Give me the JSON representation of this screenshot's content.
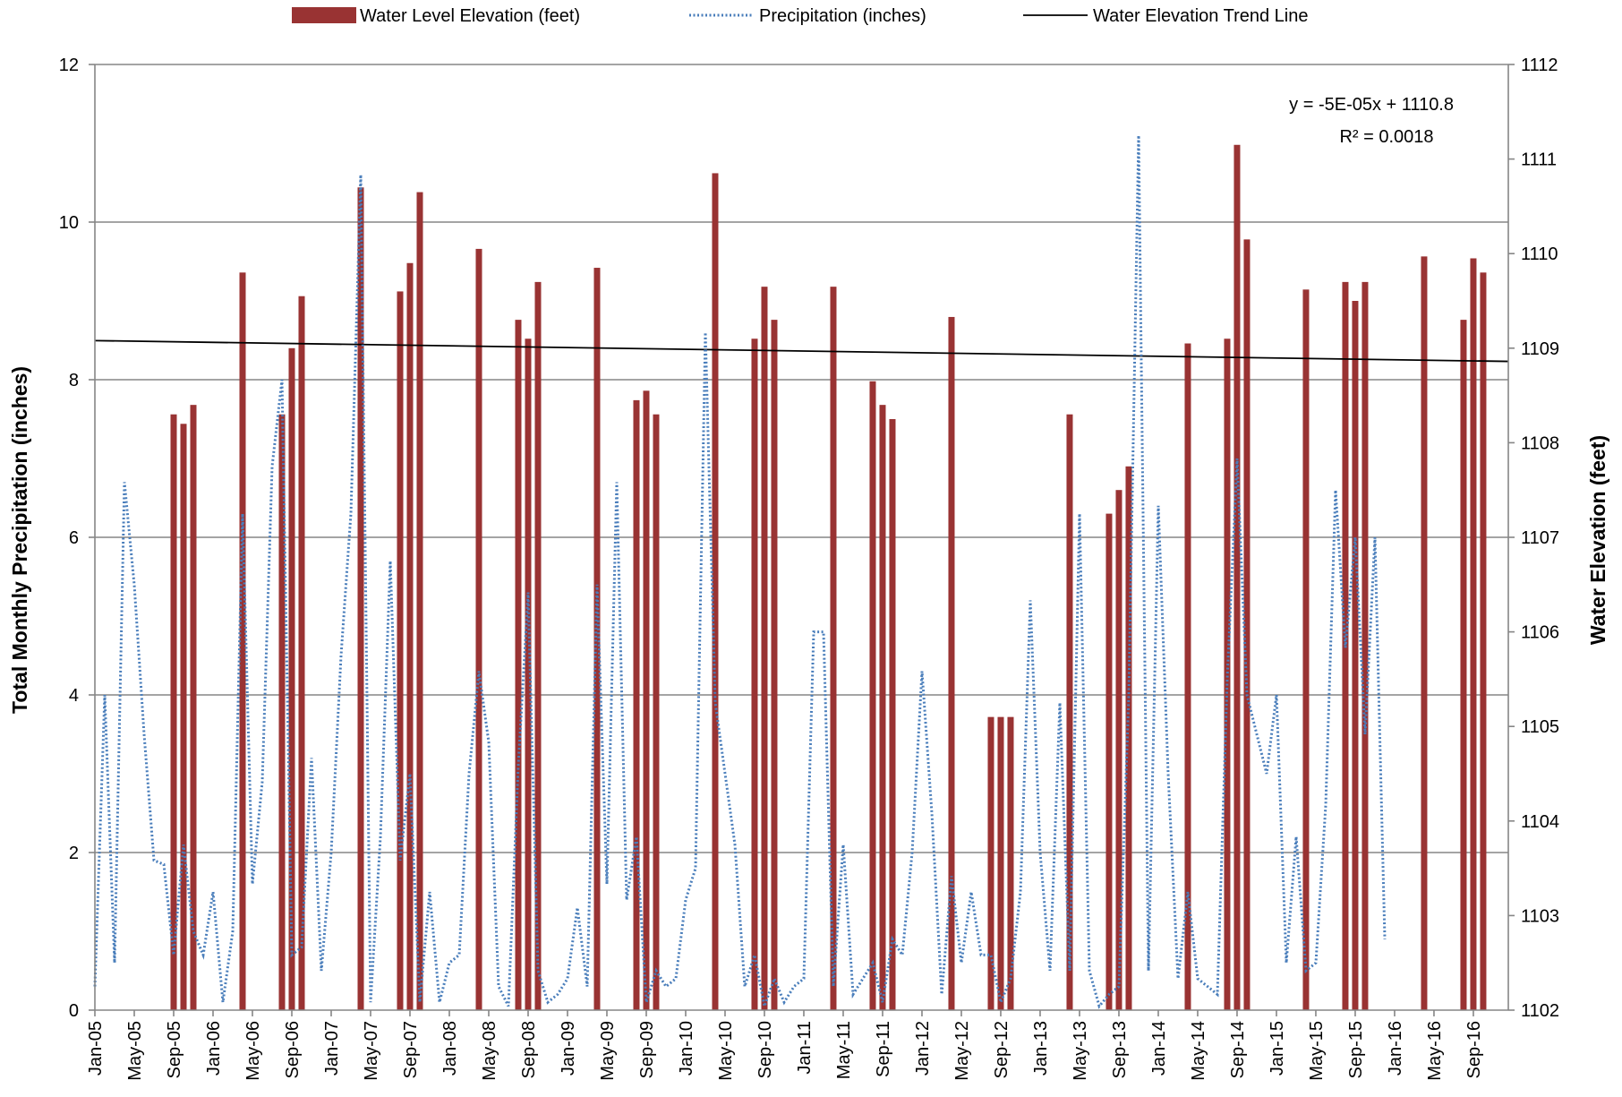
{
  "chart_data": {
    "type": "bar",
    "legend": {
      "placement": "top",
      "entries": [
        "Water Level Elevation (feet)",
        "Precipitation (inches)",
        "Water Elevation Trend Line"
      ]
    },
    "x_tick_labels": [
      "Jan-05",
      "May-05",
      "Sep-05",
      "Jan-06",
      "May-06",
      "Sep-06",
      "Jan-07",
      "May-07",
      "Sep-07",
      "Jan-08",
      "May-08",
      "Sep-08",
      "Jan-09",
      "May-09",
      "Sep-09",
      "Jan-10",
      "May-10",
      "Sep-10",
      "Jan-11",
      "May-11",
      "Sep-11",
      "Jan-12",
      "May-12",
      "Sep-12",
      "Jan-13",
      "May-13",
      "Sep-13",
      "Jan-14",
      "May-14",
      "Sep-14",
      "Jan-15",
      "May-15",
      "Sep-15",
      "Jan-16",
      "May-16",
      "Sep-16"
    ],
    "x_range": [
      "2005-01",
      "2016-12"
    ],
    "y_left": {
      "label": "Total Monthly Precipitation (inches)",
      "range": [
        0,
        12
      ],
      "ticks": [
        "0",
        "2",
        "4",
        "6",
        "8",
        "10",
        "12"
      ]
    },
    "y_right": {
      "label": "Water Elevation (feet)",
      "range": [
        1102,
        1112
      ],
      "ticks": [
        "1102",
        "1103",
        "1104",
        "1105",
        "1106",
        "1107",
        "1108",
        "1109",
        "1110",
        "1111",
        "1112"
      ]
    },
    "grid": "horizontal",
    "series": [
      {
        "name": "Water Level Elevation (feet)",
        "type": "bar",
        "axis": "right",
        "color": "#993333",
        "points": [
          [
            "2005-09",
            1108.3
          ],
          [
            "2005-10",
            1108.2
          ],
          [
            "2005-11",
            1108.4
          ],
          [
            "2006-04",
            1109.8
          ],
          [
            "2006-08",
            1108.3
          ],
          [
            "2006-09",
            1109.0
          ],
          [
            "2006-10",
            1109.55
          ],
          [
            "2007-04",
            1110.7
          ],
          [
            "2007-08",
            1109.6
          ],
          [
            "2007-09",
            1109.9
          ],
          [
            "2007-10",
            1110.65
          ],
          [
            "2008-04",
            1110.05
          ],
          [
            "2008-08",
            1109.3
          ],
          [
            "2008-09",
            1109.1
          ],
          [
            "2008-10",
            1109.7
          ],
          [
            "2009-04",
            1109.85
          ],
          [
            "2009-08",
            1108.45
          ],
          [
            "2009-09",
            1108.55
          ],
          [
            "2009-10",
            1108.3
          ],
          [
            "2010-04",
            1110.85
          ],
          [
            "2010-08",
            1109.1
          ],
          [
            "2010-09",
            1109.65
          ],
          [
            "2010-10",
            1109.3
          ],
          [
            "2011-04",
            1109.65
          ],
          [
            "2011-08",
            1108.65
          ],
          [
            "2011-09",
            1108.4
          ],
          [
            "2011-10",
            1108.25
          ],
          [
            "2012-04",
            1109.33
          ],
          [
            "2012-08",
            1105.1
          ],
          [
            "2012-09",
            1105.1
          ],
          [
            "2012-10",
            1105.1
          ],
          [
            "2013-04",
            1108.3
          ],
          [
            "2013-08",
            1107.25
          ],
          [
            "2013-09",
            1107.5
          ],
          [
            "2013-10",
            1107.75
          ],
          [
            "2014-04",
            1109.05
          ],
          [
            "2014-08",
            1109.1
          ],
          [
            "2014-09",
            1111.15
          ],
          [
            "2014-10",
            1110.15
          ],
          [
            "2015-04",
            1109.62
          ],
          [
            "2015-08",
            1109.7
          ],
          [
            "2015-09",
            1109.5
          ],
          [
            "2015-10",
            1109.7
          ],
          [
            "2016-04",
            1109.97
          ],
          [
            "2016-08",
            1109.3
          ],
          [
            "2016-09",
            1109.95
          ],
          [
            "2016-10",
            1109.8
          ]
        ]
      },
      {
        "name": "Precipitation (inches)",
        "type": "line",
        "style": "dotted",
        "axis": "left",
        "color": "#4a7ebb",
        "points": [
          [
            "2005-01",
            0.3
          ],
          [
            "2005-02",
            4.0
          ],
          [
            "2005-03",
            0.6
          ],
          [
            "2005-04",
            6.7
          ],
          [
            "2005-05",
            5.4
          ],
          [
            "2005-06",
            3.5
          ],
          [
            "2005-07",
            1.9
          ],
          [
            "2005-08",
            1.85
          ],
          [
            "2005-09",
            0.7
          ],
          [
            "2005-10",
            2.1
          ],
          [
            "2005-11",
            1.0
          ],
          [
            "2005-12",
            0.7
          ],
          [
            "2006-01",
            1.5
          ],
          [
            "2006-02",
            0.1
          ],
          [
            "2006-03",
            1.0
          ],
          [
            "2006-04",
            6.3
          ],
          [
            "2006-05",
            1.6
          ],
          [
            "2006-06",
            2.9
          ],
          [
            "2006-07",
            6.9
          ],
          [
            "2006-08",
            8.0
          ],
          [
            "2006-09",
            0.7
          ],
          [
            "2006-10",
            0.8
          ],
          [
            "2006-11",
            3.2
          ],
          [
            "2006-12",
            0.5
          ],
          [
            "2007-01",
            2.0
          ],
          [
            "2007-02",
            4.5
          ],
          [
            "2007-03",
            6.3
          ],
          [
            "2007-04",
            10.6
          ],
          [
            "2007-05",
            0.1
          ],
          [
            "2007-06",
            2.2
          ],
          [
            "2007-07",
            5.7
          ],
          [
            "2007-08",
            1.9
          ],
          [
            "2007-09",
            3.0
          ],
          [
            "2007-10",
            0.1
          ],
          [
            "2007-11",
            1.5
          ],
          [
            "2007-12",
            0.1
          ],
          [
            "2008-01",
            0.6
          ],
          [
            "2008-02",
            0.7
          ],
          [
            "2008-03",
            3.0
          ],
          [
            "2008-04",
            4.3
          ],
          [
            "2008-05",
            3.4
          ],
          [
            "2008-06",
            0.3
          ],
          [
            "2008-07",
            0.05
          ],
          [
            "2008-08",
            3.1
          ],
          [
            "2008-09",
            5.3
          ],
          [
            "2008-10",
            0.5
          ],
          [
            "2008-11",
            0.1
          ],
          [
            "2008-12",
            0.2
          ],
          [
            "2009-01",
            0.4
          ],
          [
            "2009-02",
            1.3
          ],
          [
            "2009-03",
            0.3
          ],
          [
            "2009-04",
            5.4
          ],
          [
            "2009-05",
            1.6
          ],
          [
            "2009-06",
            6.7
          ],
          [
            "2009-07",
            1.4
          ],
          [
            "2009-08",
            2.2
          ],
          [
            "2009-09",
            0.1
          ],
          [
            "2009-10",
            0.5
          ],
          [
            "2009-11",
            0.3
          ],
          [
            "2009-12",
            0.4
          ],
          [
            "2010-01",
            1.4
          ],
          [
            "2010-02",
            1.8
          ],
          [
            "2010-03",
            8.6
          ],
          [
            "2010-04",
            3.9
          ],
          [
            "2010-05",
            3.0
          ],
          [
            "2010-06",
            2.1
          ],
          [
            "2010-07",
            0.3
          ],
          [
            "2010-08",
            0.7
          ],
          [
            "2010-09",
            0.05
          ],
          [
            "2010-10",
            0.4
          ],
          [
            "2010-11",
            0.1
          ],
          [
            "2010-12",
            0.3
          ],
          [
            "2011-01",
            0.4
          ],
          [
            "2011-02",
            4.8
          ],
          [
            "2011-03",
            4.8
          ],
          [
            "2011-04",
            0.3
          ],
          [
            "2011-05",
            2.1
          ],
          [
            "2011-06",
            0.2
          ],
          [
            "2011-07",
            0.4
          ],
          [
            "2011-08",
            0.6
          ],
          [
            "2011-09",
            0.1
          ],
          [
            "2011-10",
            0.9
          ],
          [
            "2011-11",
            0.7
          ],
          [
            "2011-12",
            2.0
          ],
          [
            "2012-01",
            4.3
          ],
          [
            "2012-02",
            2.5
          ],
          [
            "2012-03",
            0.2
          ],
          [
            "2012-04",
            1.7
          ],
          [
            "2012-05",
            0.6
          ],
          [
            "2012-06",
            1.5
          ],
          [
            "2012-07",
            0.7
          ],
          [
            "2012-08",
            0.7
          ],
          [
            "2012-09",
            0.1
          ],
          [
            "2012-10",
            0.4
          ],
          [
            "2012-11",
            1.5
          ],
          [
            "2012-12",
            5.2
          ],
          [
            "2013-01",
            2.0
          ],
          [
            "2013-02",
            0.5
          ],
          [
            "2013-03",
            3.9
          ],
          [
            "2013-04",
            0.5
          ],
          [
            "2013-05",
            6.3
          ],
          [
            "2013-06",
            0.5
          ],
          [
            "2013-07",
            0.05
          ],
          [
            "2013-08",
            0.2
          ],
          [
            "2013-09",
            0.3
          ],
          [
            "2013-10",
            4.0
          ],
          [
            "2013-11",
            11.1
          ],
          [
            "2013-12",
            0.5
          ],
          [
            "2014-01",
            6.4
          ],
          [
            "2014-02",
            3.0
          ],
          [
            "2014-03",
            0.4
          ],
          [
            "2014-04",
            1.5
          ],
          [
            "2014-05",
            0.4
          ],
          [
            "2014-06",
            0.3
          ],
          [
            "2014-07",
            0.2
          ],
          [
            "2014-08",
            4.2
          ],
          [
            "2014-09",
            7.0
          ],
          [
            "2014-10",
            4.0
          ],
          [
            "2014-11",
            3.5
          ],
          [
            "2014-12",
            3.0
          ],
          [
            "2015-01",
            4.0
          ],
          [
            "2015-02",
            0.6
          ],
          [
            "2015-03",
            2.2
          ],
          [
            "2015-04",
            0.5
          ],
          [
            "2015-05",
            0.6
          ],
          [
            "2015-06",
            2.6
          ],
          [
            "2015-07",
            6.6
          ],
          [
            "2015-08",
            4.6
          ],
          [
            "2015-09",
            6.0
          ],
          [
            "2015-10",
            3.5
          ],
          [
            "2015-11",
            6.0
          ],
          [
            "2015-12",
            0.9
          ]
        ]
      },
      {
        "name": "Water Elevation Trend Line",
        "type": "line",
        "axis": "right",
        "color": "#000000",
        "points": [
          [
            "2005-01",
            1109.08
          ],
          [
            "2016-12",
            1108.86
          ]
        ]
      }
    ],
    "annotations": [
      "y = -5E-05x + 1110.8",
      "R² = 0.0018"
    ]
  }
}
